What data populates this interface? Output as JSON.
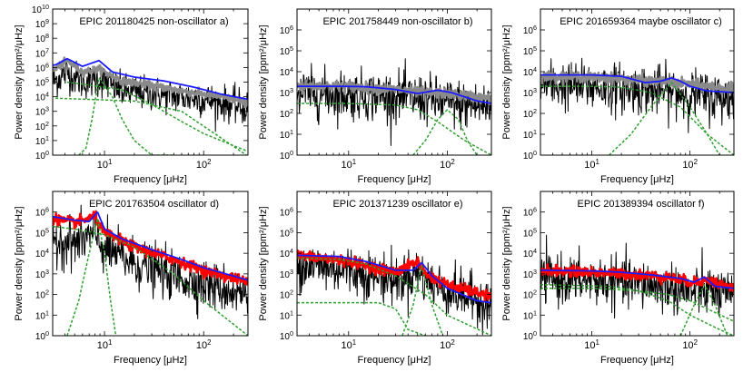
{
  "figure": {
    "xlabel": "Frequency [μHz]",
    "ylabel": "Power density [ppm²/μHz]"
  },
  "colors": {
    "data_black": "#000000",
    "smoothed_gray": "#8a8a8a",
    "smoothed_red": "#ff0000",
    "fit_blue": "#1a1aff",
    "components_green": "#2ca02c"
  },
  "chart_data": [
    {
      "type": "line",
      "title": "EPIC 201180425 non-oscillator a)",
      "xlabel": "Frequency [μHz]",
      "ylabel": "Power density [ppm²/μHz]",
      "xscale": "log",
      "yscale": "log",
      "xlim": [
        3,
        280
      ],
      "ylim": [
        1,
        10000000000.0
      ],
      "xticks": [
        10,
        100
      ],
      "yticks": [
        1,
        10,
        100,
        1000,
        10000.0,
        100000.0,
        1000000.0,
        10000000.0,
        100000000.0,
        1000000000.0,
        10000000000.0
      ],
      "series": [
        {
          "style": "noisy-black",
          "x": [
            3.2,
            4.2,
            6,
            8.8,
            15,
            30,
            60,
            100,
            150,
            270
          ],
          "values": [
            80000.0,
            300000.0,
            60000.0,
            100000.0,
            15000.0,
            10000.0,
            6000.0,
            4000.0,
            2500.0,
            1000.0
          ]
        },
        {
          "style": "smoothed",
          "color": "gray",
          "x": [
            3.2,
            4.2,
            6,
            8.8,
            15,
            30,
            60,
            100,
            150,
            270
          ],
          "values": [
            800000.0,
            3000000.0,
            500000.0,
            800000.0,
            120000.0,
            60000.0,
            25000.0,
            15000.0,
            10000.0,
            4000.0
          ]
        },
        {
          "style": "fit",
          "color": "blue",
          "x": [
            3.2,
            4.2,
            6,
            8.8,
            12,
            20,
            40,
            80,
            150,
            270
          ],
          "values": [
            1500000.0,
            4000000.0,
            1200000.0,
            3000000.0,
            500000.0,
            220000.0,
            120000.0,
            45000.0,
            15000.0,
            7000.0
          ]
        },
        {
          "style": "component",
          "x": [
            4.2,
            15,
            30,
            60,
            100,
            270
          ],
          "values": [
            100000.0,
            30000.0,
            3000.0,
            200,
            30,
            2
          ]
        },
        {
          "style": "component",
          "x": [
            5.5,
            6.5,
            7.5,
            8.8,
            12,
            15,
            20,
            30,
            50
          ],
          "values": [
            1,
            3,
            300.0,
            200000.0,
            10000.0,
            300,
            10,
            1,
            1
          ]
        },
        {
          "style": "component",
          "x": [
            3.2,
            20,
            60,
            150,
            270
          ],
          "values": [
            8000.0,
            5000.0,
            1000.0,
            15,
            1
          ]
        }
      ]
    },
    {
      "type": "line",
      "title": "EPIC 201758449 non-oscillator b)",
      "xlabel": "Frequency [μHz]",
      "ylabel": "Power density [ppm²/μHz]",
      "xscale": "log",
      "yscale": "log",
      "xlim": [
        3,
        280
      ],
      "ylim": [
        1,
        10000000.0
      ],
      "xticks": [
        10,
        100
      ],
      "yticks": [
        1,
        10,
        100,
        1000,
        10000.0,
        100000.0,
        1000000.0
      ],
      "series": [
        {
          "style": "noisy-black",
          "x": [
            3,
            10,
            30,
            60,
            100,
            280
          ],
          "values": [
            600,
            500,
            400,
            300,
            200,
            120
          ]
        },
        {
          "style": "smoothed",
          "color": "gray",
          "x": [
            3,
            10,
            30,
            60,
            100,
            280
          ],
          "values": [
            2200,
            2000,
            1400,
            1000,
            900,
            500
          ]
        },
        {
          "style": "fit",
          "color": "blue",
          "x": [
            3,
            8,
            15,
            30,
            50,
            80,
            110,
            200,
            280
          ],
          "values": [
            2000,
            2000,
            1900,
            1400,
            900,
            1300,
            1000,
            400,
            300
          ]
        },
        {
          "style": "component",
          "x": [
            3,
            10,
            30,
            50,
            80,
            150,
            280
          ],
          "values": [
            300,
            300,
            250,
            150,
            40,
            5,
            1
          ]
        },
        {
          "style": "component",
          "x": [
            45,
            60,
            80,
            100,
            130,
            160,
            200
          ],
          "values": [
            1,
            5,
            50,
            150,
            50,
            5,
            1
          ]
        }
      ]
    },
    {
      "type": "line",
      "title": "EPIC 201659364 maybe oscillator c)",
      "xlabel": "Frequency [μHz]",
      "ylabel": "Power density [ppm²/μHz]",
      "xscale": "log",
      "yscale": "log",
      "xlim": [
        3,
        280
      ],
      "ylim": [
        1,
        10000000.0
      ],
      "xticks": [
        10,
        100
      ],
      "yticks": [
        1,
        10,
        100,
        1000,
        10000.0,
        100000.0,
        1000000.0
      ],
      "series": [
        {
          "style": "noisy-black",
          "x": [
            3,
            10,
            30,
            60,
            100,
            280
          ],
          "values": [
            1500,
            1200,
            900,
            700,
            500,
            300
          ]
        },
        {
          "style": "smoothed",
          "color": "gray",
          "x": [
            3,
            10,
            30,
            60,
            100,
            280
          ],
          "values": [
            6000,
            5500,
            4000,
            3000,
            2500,
            1500
          ]
        },
        {
          "style": "fit",
          "color": "blue",
          "x": [
            3,
            10,
            20,
            35,
            50,
            65,
            80,
            100,
            150,
            280
          ],
          "values": [
            7000,
            7000,
            6000,
            3000,
            3500,
            5000,
            3500,
            2000,
            1200,
            1000
          ]
        },
        {
          "style": "component",
          "x": [
            3,
            10,
            20,
            40,
            80,
            150,
            280
          ],
          "values": [
            2000,
            2000,
            1800,
            1000,
            200,
            10,
            1
          ]
        },
        {
          "style": "component",
          "x": [
            15,
            25,
            40,
            65,
            100,
            150,
            200
          ],
          "values": [
            1,
            10,
            200,
            3000,
            200,
            10,
            1
          ]
        }
      ]
    },
    {
      "type": "line",
      "title": "EPIC 201763504 oscillator d)",
      "xlabel": "Frequency [μHz]",
      "ylabel": "Power density [ppm²/μHz]",
      "xscale": "log",
      "yscale": "log",
      "xlim": [
        3,
        280
      ],
      "ylim": [
        1,
        10000000.0
      ],
      "xticks": [
        10,
        100
      ],
      "yticks": [
        1,
        10,
        100,
        1000,
        10000.0,
        100000.0,
        1000000.0
      ],
      "series": [
        {
          "style": "noisy-black",
          "x": [
            3,
            5,
            8,
            10,
            20,
            50,
            100,
            280
          ],
          "values": [
            30000.0,
            20000.0,
            50000.0,
            10000.0,
            2000,
            500,
            200,
            60
          ]
        },
        {
          "style": "smoothed",
          "color": "red",
          "x": [
            3,
            5,
            8,
            10,
            20,
            50,
            100,
            280
          ],
          "values": [
            500000.0,
            300000.0,
            600000.0,
            100000.0,
            20000.0,
            5000,
            1500,
            400
          ]
        },
        {
          "style": "fit",
          "color": "blue",
          "x": [
            3,
            5,
            7,
            8.5,
            10,
            15,
            30,
            60,
            100,
            280
          ],
          "values": [
            600000.0,
            400000.0,
            350000.0,
            1000000.0,
            150000.0,
            50000.0,
            15000.0,
            5000,
            2000,
            500
          ]
        },
        {
          "style": "component",
          "x": [
            3,
            5,
            10,
            20,
            50,
            100,
            280
          ],
          "values": [
            200000.0,
            150000.0,
            80000.0,
            20000.0,
            1000,
            50,
            1
          ]
        },
        {
          "style": "component",
          "x": [
            4.2,
            5.5,
            7,
            8.5,
            10,
            11.5,
            13
          ],
          "values": [
            1,
            50,
            10000.0,
            500000.0,
            10000.0,
            50,
            1
          ]
        }
      ]
    },
    {
      "type": "line",
      "title": "EPIC 201371239 oscillator e)",
      "xlabel": "Frequency [μHz]",
      "ylabel": "Power density [ppm²/μHz]",
      "xscale": "log",
      "yscale": "log",
      "xlim": [
        3,
        280
      ],
      "ylim": [
        1,
        10000000.0
      ],
      "xticks": [
        10,
        100
      ],
      "yticks": [
        1,
        10,
        100,
        1000,
        10000.0,
        100000.0,
        1000000.0
      ],
      "series": [
        {
          "style": "noisy-black",
          "x": [
            3,
            10,
            30,
            50,
            60,
            100,
            280
          ],
          "values": [
            2000,
            1000,
            300,
            800,
            300,
            100,
            20
          ]
        },
        {
          "style": "smoothed",
          "color": "red",
          "x": [
            3,
            10,
            30,
            50,
            60,
            100,
            280
          ],
          "values": [
            8000,
            4000,
            1200,
            4000,
            1000,
            300,
            80
          ]
        },
        {
          "style": "fit",
          "color": "blue",
          "x": [
            3,
            8,
            15,
            30,
            45,
            55,
            70,
            100,
            200,
            280
          ],
          "values": [
            8000,
            7000,
            4000,
            1500,
            1500,
            3500,
            800,
            200,
            50,
            40
          ]
        },
        {
          "style": "component",
          "x": [
            3,
            8,
            15,
            30,
            60,
            100,
            280
          ],
          "values": [
            6000,
            5000,
            3000,
            800,
            100,
            10,
            1
          ]
        },
        {
          "style": "component",
          "x": [
            3,
            20,
            30,
            40,
            60
          ],
          "values": [
            40,
            40,
            20,
            2,
            1
          ]
        },
        {
          "style": "component",
          "x": [
            35,
            45,
            55,
            70,
            90
          ],
          "values": [
            1,
            30,
            2500,
            30,
            1
          ]
        }
      ]
    },
    {
      "type": "line",
      "title": "EPIC 201389394 oscillator f)",
      "xlabel": "Frequency [μHz]",
      "ylabel": "Power density [ppm²/μHz]",
      "xscale": "log",
      "yscale": "log",
      "xlim": [
        3,
        280
      ],
      "ylim": [
        1,
        10000000.0
      ],
      "xticks": [
        10,
        100
      ],
      "yticks": [
        1,
        10,
        100,
        1000,
        10000.0,
        100000.0,
        1000000.0
      ],
      "series": [
        {
          "style": "noisy-black",
          "x": [
            3,
            10,
            30,
            60,
            100,
            150,
            280
          ],
          "values": [
            400,
            300,
            200,
            150,
            80,
            100,
            40
          ]
        },
        {
          "style": "smoothed",
          "color": "red",
          "x": [
            3,
            10,
            30,
            60,
            100,
            150,
            280
          ],
          "values": [
            1500,
            1200,
            900,
            700,
            400,
            500,
            200
          ]
        },
        {
          "style": "fit",
          "color": "blue",
          "x": [
            3,
            10,
            20,
            40,
            80,
            110,
            140,
            180,
            280
          ],
          "values": [
            1500,
            1400,
            1200,
            900,
            600,
            400,
            700,
            250,
            200
          ]
        },
        {
          "style": "component",
          "x": [
            3,
            10,
            30,
            60,
            100,
            150,
            280
          ],
          "values": [
            200,
            200,
            150,
            100,
            50,
            20,
            5
          ]
        },
        {
          "style": "component",
          "x": [
            3,
            15,
            30,
            60,
            100,
            200,
            280
          ],
          "values": [
            300,
            250,
            150,
            50,
            10,
            2,
            1
          ]
        },
        {
          "style": "component",
          "x": [
            80,
            110,
            140,
            180,
            240
          ],
          "values": [
            1,
            30,
            300,
            30,
            1
          ]
        }
      ]
    }
  ]
}
